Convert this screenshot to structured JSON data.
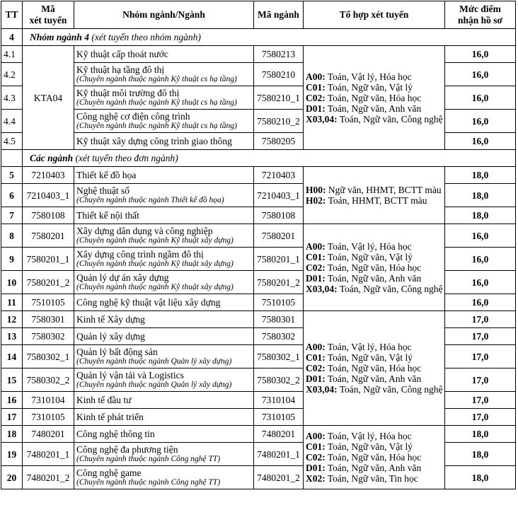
{
  "header": {
    "tt": "TT",
    "ma_xet_tuyen": "Mã\nxét tuyển",
    "nganh": "Nhóm ngành/Ngành",
    "ma_nganh": "Mã ngành",
    "to_hop": "Tổ hợp xét tuyển",
    "muc_diem": "Mức điểm\nnhận hồ sơ"
  },
  "combo_groups": {
    "g1": [
      {
        "code": "A00:",
        "subjects": " Toán, Vật lý, Hóa học"
      },
      {
        "code": "C01:",
        "subjects": " Toán, Ngữ văn, Vật lý"
      },
      {
        "code": "C02:",
        "subjects": " Toán, Ngữ văn, Hóa học"
      },
      {
        "code": "D01:",
        "subjects": " Toán, Ngữ văn, Anh văn"
      },
      {
        "code": "X03,04:",
        "subjects": " Toán, Ngữ văn, Công nghệ"
      }
    ],
    "g2": [
      {
        "code": "H00:",
        "subjects": " Ngữ văn, HHMT, BCTT màu"
      },
      {
        "code": "H02:",
        "subjects": " Toán, HHMT, BCTT màu"
      }
    ],
    "g3": [
      {
        "code": "A00:",
        "subjects": " Toán, Vật lý, Hóa học"
      },
      {
        "code": "C01:",
        "subjects": " Toán, Ngữ văn, Vật lý"
      },
      {
        "code": "C02:",
        "subjects": " Toán, Ngữ văn, Hóa học"
      },
      {
        "code": "D01:",
        "subjects": " Toán, Ngữ văn, Anh văn"
      },
      {
        "code": "X03,04:",
        "subjects": " Toán, Ngữ văn, Công nghệ"
      }
    ],
    "g4": [
      {
        "code": "A00:",
        "subjects": " Toán, Vật lý, Hóa học"
      },
      {
        "code": "C01:",
        "subjects": " Toán, Ngữ văn, Vật lý"
      },
      {
        "code": "C02:",
        "subjects": " Toán, Ngữ văn, Hóa học"
      },
      {
        "code": "D01:",
        "subjects": " Toán, Ngữ văn, Anh văn"
      },
      {
        "code": "X03,04:",
        "subjects": " Toán, Ngữ văn, Công nghệ"
      }
    ],
    "g5": [
      {
        "code": "A00:",
        "subjects": " Toán, Vật lý, Hóa học"
      },
      {
        "code": "C01:",
        "subjects": " Toán, Ngữ văn, Vật lý"
      },
      {
        "code": "C02:",
        "subjects": " Toán, Ngữ văn, Hóa học"
      },
      {
        "code": "D01:",
        "subjects": " Toán, Ngữ văn, Anh văn"
      },
      {
        "code": "X02:",
        "subjects": " Toán, Ngữ văn, Tin học"
      }
    ]
  },
  "rows": [
    {
      "type": "section",
      "tt": "4",
      "title": "Nhóm ngành 4",
      "subtitle": " (xét tuyển theo nhóm ngành)"
    },
    {
      "tt": "4.1",
      "ma_xt": "KTA04",
      "xt_group": "x1",
      "name": "Kỹ thuật cấp thoát nước",
      "note": "",
      "ma_nganh": "7580213",
      "group": "g1",
      "score": "16,0"
    },
    {
      "tt": "4.2",
      "ma_xt": "KTA04",
      "xt_group": "x1",
      "name": "Kỹ thuật hạ tầng đô thị",
      "note": "(Chuyên ngành thuộc ngành Kỹ thuật cs hạ tầng)",
      "ma_nganh": "7580210",
      "group": "g1",
      "score": "16,0"
    },
    {
      "tt": "4.3",
      "ma_xt": "KTA04",
      "xt_group": "x1",
      "name": "Kỹ thuật môi trường đô thị",
      "note": "(Chuyên ngành thuộc ngành Kỹ thuật cs hạ tầng)",
      "ma_nganh": "7580210_1",
      "group": "g1",
      "score": "16,0"
    },
    {
      "tt": "4.4",
      "ma_xt": "KTA04",
      "xt_group": "x1",
      "name": "Công nghệ cơ điện công trình",
      "note": "(Chuyên ngành thuộc ngành Kỹ thuật cs hạ tầng)",
      "ma_nganh": "7580210_2",
      "group": "g1",
      "score": "16,0"
    },
    {
      "tt": "4.5",
      "ma_xt": "KTA04",
      "xt_group": "x1",
      "name": "Kỹ thuật xây dựng công trình giao thông",
      "note": "",
      "ma_nganh": "7580205",
      "group": "g1",
      "score": "16,0"
    },
    {
      "type": "section",
      "tt": "",
      "title": "Các ngành",
      "subtitle": " (xét tuyển theo đơn ngành)"
    },
    {
      "tt": "5",
      "ma_xt": "7210403",
      "name": "Thiết kế đồ họa",
      "note": "",
      "ma_nganh": "7210403",
      "group": "g2",
      "score": "18,0"
    },
    {
      "tt": "6",
      "ma_xt": "7210403_1",
      "name": "Nghệ thuật số",
      "note": "(Chuyên ngành thuộc ngành Thiết kế đồ họa)",
      "ma_nganh": "7210403_1",
      "group": "g2",
      "score": "18,0"
    },
    {
      "tt": "7",
      "ma_xt": "7580108",
      "name": "Thiết kế nội thất",
      "note": "",
      "ma_nganh": "7580108",
      "group": "g2",
      "score": "18,0"
    },
    {
      "tt": "8",
      "ma_xt": "7580201",
      "name": "Xây dựng dân dụng và công nghiệp",
      "note": "(Chuyên ngành thuộc ngành Kỹ thuật xây dựng)",
      "ma_nganh": "7580201",
      "group": "g3",
      "score": "16,0"
    },
    {
      "tt": "9",
      "ma_xt": "7580201_1",
      "name": "Xây dựng công trình ngầm đô thị",
      "note": "(Chuyên ngành thuộc ngành Kỹ thuật xây dựng)",
      "ma_nganh": "7580201_1",
      "group": "g3",
      "score": "16,0"
    },
    {
      "tt": "10",
      "ma_xt": "7580201_2",
      "name": "Quản lý dự án xây dựng",
      "note": "(Chuyên ngành thuộc ngành Kỹ thuật xây dựng)",
      "ma_nganh": "7580201_2",
      "group": "g3",
      "score": "16,0"
    },
    {
      "tt": "11",
      "ma_xt": "7510105",
      "name": "Công nghệ kỹ thuật vật liệu xây dựng",
      "note": "",
      "ma_nganh": "7510105",
      "group": "g3",
      "score": "16,0"
    },
    {
      "tt": "12",
      "ma_xt": "7580301",
      "name": "Kinh tế Xây dựng",
      "note": "",
      "ma_nganh": "7580301",
      "group": "g4",
      "score": "17,0"
    },
    {
      "tt": "13",
      "ma_xt": "7580302",
      "name": "Quản lý xây dựng",
      "note": "",
      "ma_nganh": "7580302",
      "group": "g4",
      "score": "17,0"
    },
    {
      "tt": "14",
      "ma_xt": "7580302_1",
      "name": "Quản lý bất động sản",
      "note": "(Chuyên ngành thuộc ngành Quản lý xây dựng)",
      "ma_nganh": "7580302_1",
      "group": "g4",
      "score": "17,0"
    },
    {
      "tt": "15",
      "ma_xt": "7580302_2",
      "name": "Quản lý vận tải và Logistics",
      "note": "(Chuyên ngành thuộc ngành Quản lý xây dựng)",
      "ma_nganh": "7580302_2",
      "group": "g4",
      "score": "17,0"
    },
    {
      "tt": "16",
      "ma_xt": "7310104",
      "name": "Kinh tế đầu tư",
      "note": "",
      "ma_nganh": "7310104",
      "group": "g4",
      "score": "17,0"
    },
    {
      "tt": "17",
      "ma_xt": "7310105",
      "name": "Kinh tế phát triển",
      "note": "",
      "ma_nganh": "7310105",
      "group": "g4",
      "score": "17,0"
    },
    {
      "tt": "18",
      "ma_xt": "7480201",
      "name": "Công nghệ thông tin",
      "note": "",
      "ma_nganh": "7480201",
      "group": "g5",
      "score": "18,0"
    },
    {
      "tt": "19",
      "ma_xt": "7480201_1",
      "name": "Công nghệ đa phương tiện",
      "note": "(Chuyên ngành thuộc ngành Công nghệ TT)",
      "ma_nganh": "7480201_1",
      "group": "g5",
      "score": "18,0"
    },
    {
      "tt": "20",
      "ma_xt": "7480201_2",
      "name": "Công nghệ game",
      "note": "(Chuyên ngành thuộc ngành Công nghệ TT)",
      "ma_nganh": "7480201_2",
      "group": "g5",
      "score": "18,0"
    }
  ]
}
